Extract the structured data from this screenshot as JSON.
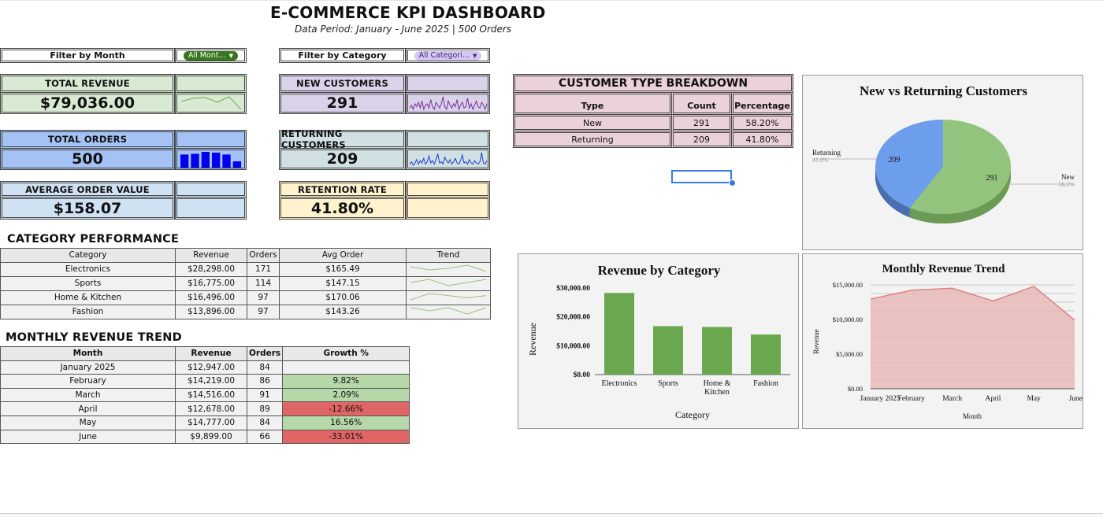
{
  "header": {
    "title": "E-COMMERCE KPI DASHBOARD",
    "subtitle": "Data Period: January - June 2025 | 500 Orders"
  },
  "filters": {
    "month_label": "Filter by Month",
    "month_value": "All Mont...",
    "category_label": "Filter by Category",
    "category_value": "All Categori..."
  },
  "kpis": {
    "total_revenue": {
      "label": "TOTAL REVENUE",
      "value": "$79,036.00"
    },
    "new_customers": {
      "label": "NEW CUSTOMERS",
      "value": "291"
    },
    "total_orders": {
      "label": "TOTAL ORDERS",
      "value": "500"
    },
    "returning_customers": {
      "label": "RETURNING CUSTOMERS",
      "value": "209"
    },
    "avg_order_value": {
      "label": "AVERAGE ORDER VALUE",
      "value": "$158.07"
    },
    "retention_rate": {
      "label": "RETENTION RATE",
      "value": "41.80%"
    }
  },
  "sparklines": {
    "total_revenue": [
      12947,
      14219,
      14516,
      12678,
      14777,
      9899
    ],
    "total_orders": [
      84,
      86,
      91,
      89,
      84,
      66
    ],
    "new_customers": [
      3,
      5,
      2,
      6,
      4,
      7,
      3,
      8,
      2,
      5,
      6,
      3,
      9,
      4,
      2,
      7,
      5,
      3,
      6,
      11,
      4,
      2,
      8,
      5,
      3,
      6,
      4,
      9,
      2,
      5,
      7,
      3,
      4,
      10,
      3,
      6,
      2,
      5,
      8,
      4,
      3,
      7,
      5,
      2,
      6
    ],
    "returning_customers": [
      2,
      4,
      1,
      3,
      6,
      2,
      5,
      3,
      7,
      2,
      4,
      9,
      3,
      5,
      2,
      6,
      11,
      3,
      4,
      2,
      8,
      5,
      3,
      6,
      2,
      4,
      7,
      3,
      2,
      5,
      10,
      3,
      4,
      2,
      6,
      3,
      2,
      5,
      3,
      2,
      4,
      12,
      3,
      2,
      5
    ]
  },
  "customer_breakdown": {
    "title": "CUSTOMER TYPE BREAKDOWN",
    "headers": [
      "Type",
      "Count",
      "Percentage"
    ],
    "rows": [
      [
        "New",
        "291",
        "58.20%"
      ],
      [
        "Returning",
        "209",
        "41.80%"
      ]
    ]
  },
  "category_performance": {
    "title": "CATEGORY PERFORMANCE",
    "headers": [
      "Category",
      "Revenue",
      "Orders",
      "Avg Order",
      "Trend"
    ],
    "rows": [
      [
        "Electronics",
        "$28,298.00",
        "171",
        "$165.49"
      ],
      [
        "Sports",
        "$16,775.00",
        "114",
        "$147.15"
      ],
      [
        "Home & Kitchen",
        "$16,496.00",
        "97",
        "$170.06"
      ],
      [
        "Fashion",
        "$13,896.00",
        "97",
        "$143.26"
      ]
    ],
    "trends": [
      [
        5,
        3,
        4,
        6,
        2
      ],
      [
        4,
        5,
        3,
        4,
        5
      ],
      [
        2,
        5,
        4,
        3,
        4
      ],
      [
        4,
        3,
        4,
        2,
        4
      ]
    ]
  },
  "monthly_table": {
    "title": "MONTHLY REVENUE TREND",
    "headers": [
      "Month",
      "Revenue",
      "Orders",
      "Growth %"
    ],
    "rows": [
      [
        "January 2025",
        "$12,947.00",
        "84",
        ""
      ],
      [
        "February",
        "$14,219.00",
        "86",
        "9.82%"
      ],
      [
        "March",
        "$14,516.00",
        "91",
        "2.09%"
      ],
      [
        "April",
        "$12,678.00",
        "89",
        "-12.66%"
      ],
      [
        "May",
        "$14,777.00",
        "84",
        "16.56%"
      ],
      [
        "June",
        "$9,899.00",
        "66",
        "-33.01%"
      ]
    ],
    "growth_status": [
      "none",
      "positive",
      "positive",
      "negative",
      "positive",
      "negative"
    ]
  },
  "colors": {
    "green_fill": "#d9ead3",
    "blue_fill": "#a4c2f4",
    "lightblue_fill": "#cfe2f3",
    "purple_fill": "#d9d2e9",
    "slate_fill": "#d0e0e3",
    "yellow_fill": "#fff2cc",
    "pink_fill": "#ead1dc",
    "positive": "#b6d7a8",
    "negative": "#e06666",
    "bar_green": "#6aa84f",
    "pie_blue": "#6d9eeb",
    "pie_green": "#93c47d",
    "area_fill": "#e6b8b7",
    "area_line": "#e08080",
    "month_chip": "#38761d",
    "category_chip": "#d5c7f2"
  },
  "chart_data": [
    {
      "type": "pie",
      "title": "New vs Returning Customers",
      "labels": [
        "New",
        "Returning"
      ],
      "values": [
        291,
        209
      ],
      "percent_labels": [
        "58.2%",
        "41.8%"
      ]
    },
    {
      "type": "bar",
      "title": "Revenue by Category",
      "categories": [
        "Electronics",
        "Sports",
        "Home & Kitchen",
        "Fashion"
      ],
      "category_lines": [
        [
          "Electronics"
        ],
        [
          "Sports"
        ],
        [
          "Home &",
          "Kitchen"
        ],
        [
          "Fashion"
        ]
      ],
      "values": [
        28298,
        16775,
        16496,
        13896
      ],
      "xlabel": "Category",
      "ylabel": "Revenue",
      "ylim": [
        0,
        30000
      ],
      "yticks": [
        "$0.00",
        "$10,000.00",
        "$20,000.00",
        "$30,000.00"
      ],
      "grid": false
    },
    {
      "type": "area",
      "title": "Monthly Revenue Trend",
      "categories": [
        "January 2025",
        "February",
        "March",
        "April",
        "May",
        "June"
      ],
      "values": [
        12947,
        14219,
        14516,
        12678,
        14777,
        9899
      ],
      "xlabel": "Month",
      "ylabel": "Revenue",
      "ylim": [
        0,
        15000
      ],
      "yticks": [
        "$0.00",
        "$5,000.00",
        "$10,000.00",
        "$15,000.00"
      ],
      "grid": true
    }
  ]
}
